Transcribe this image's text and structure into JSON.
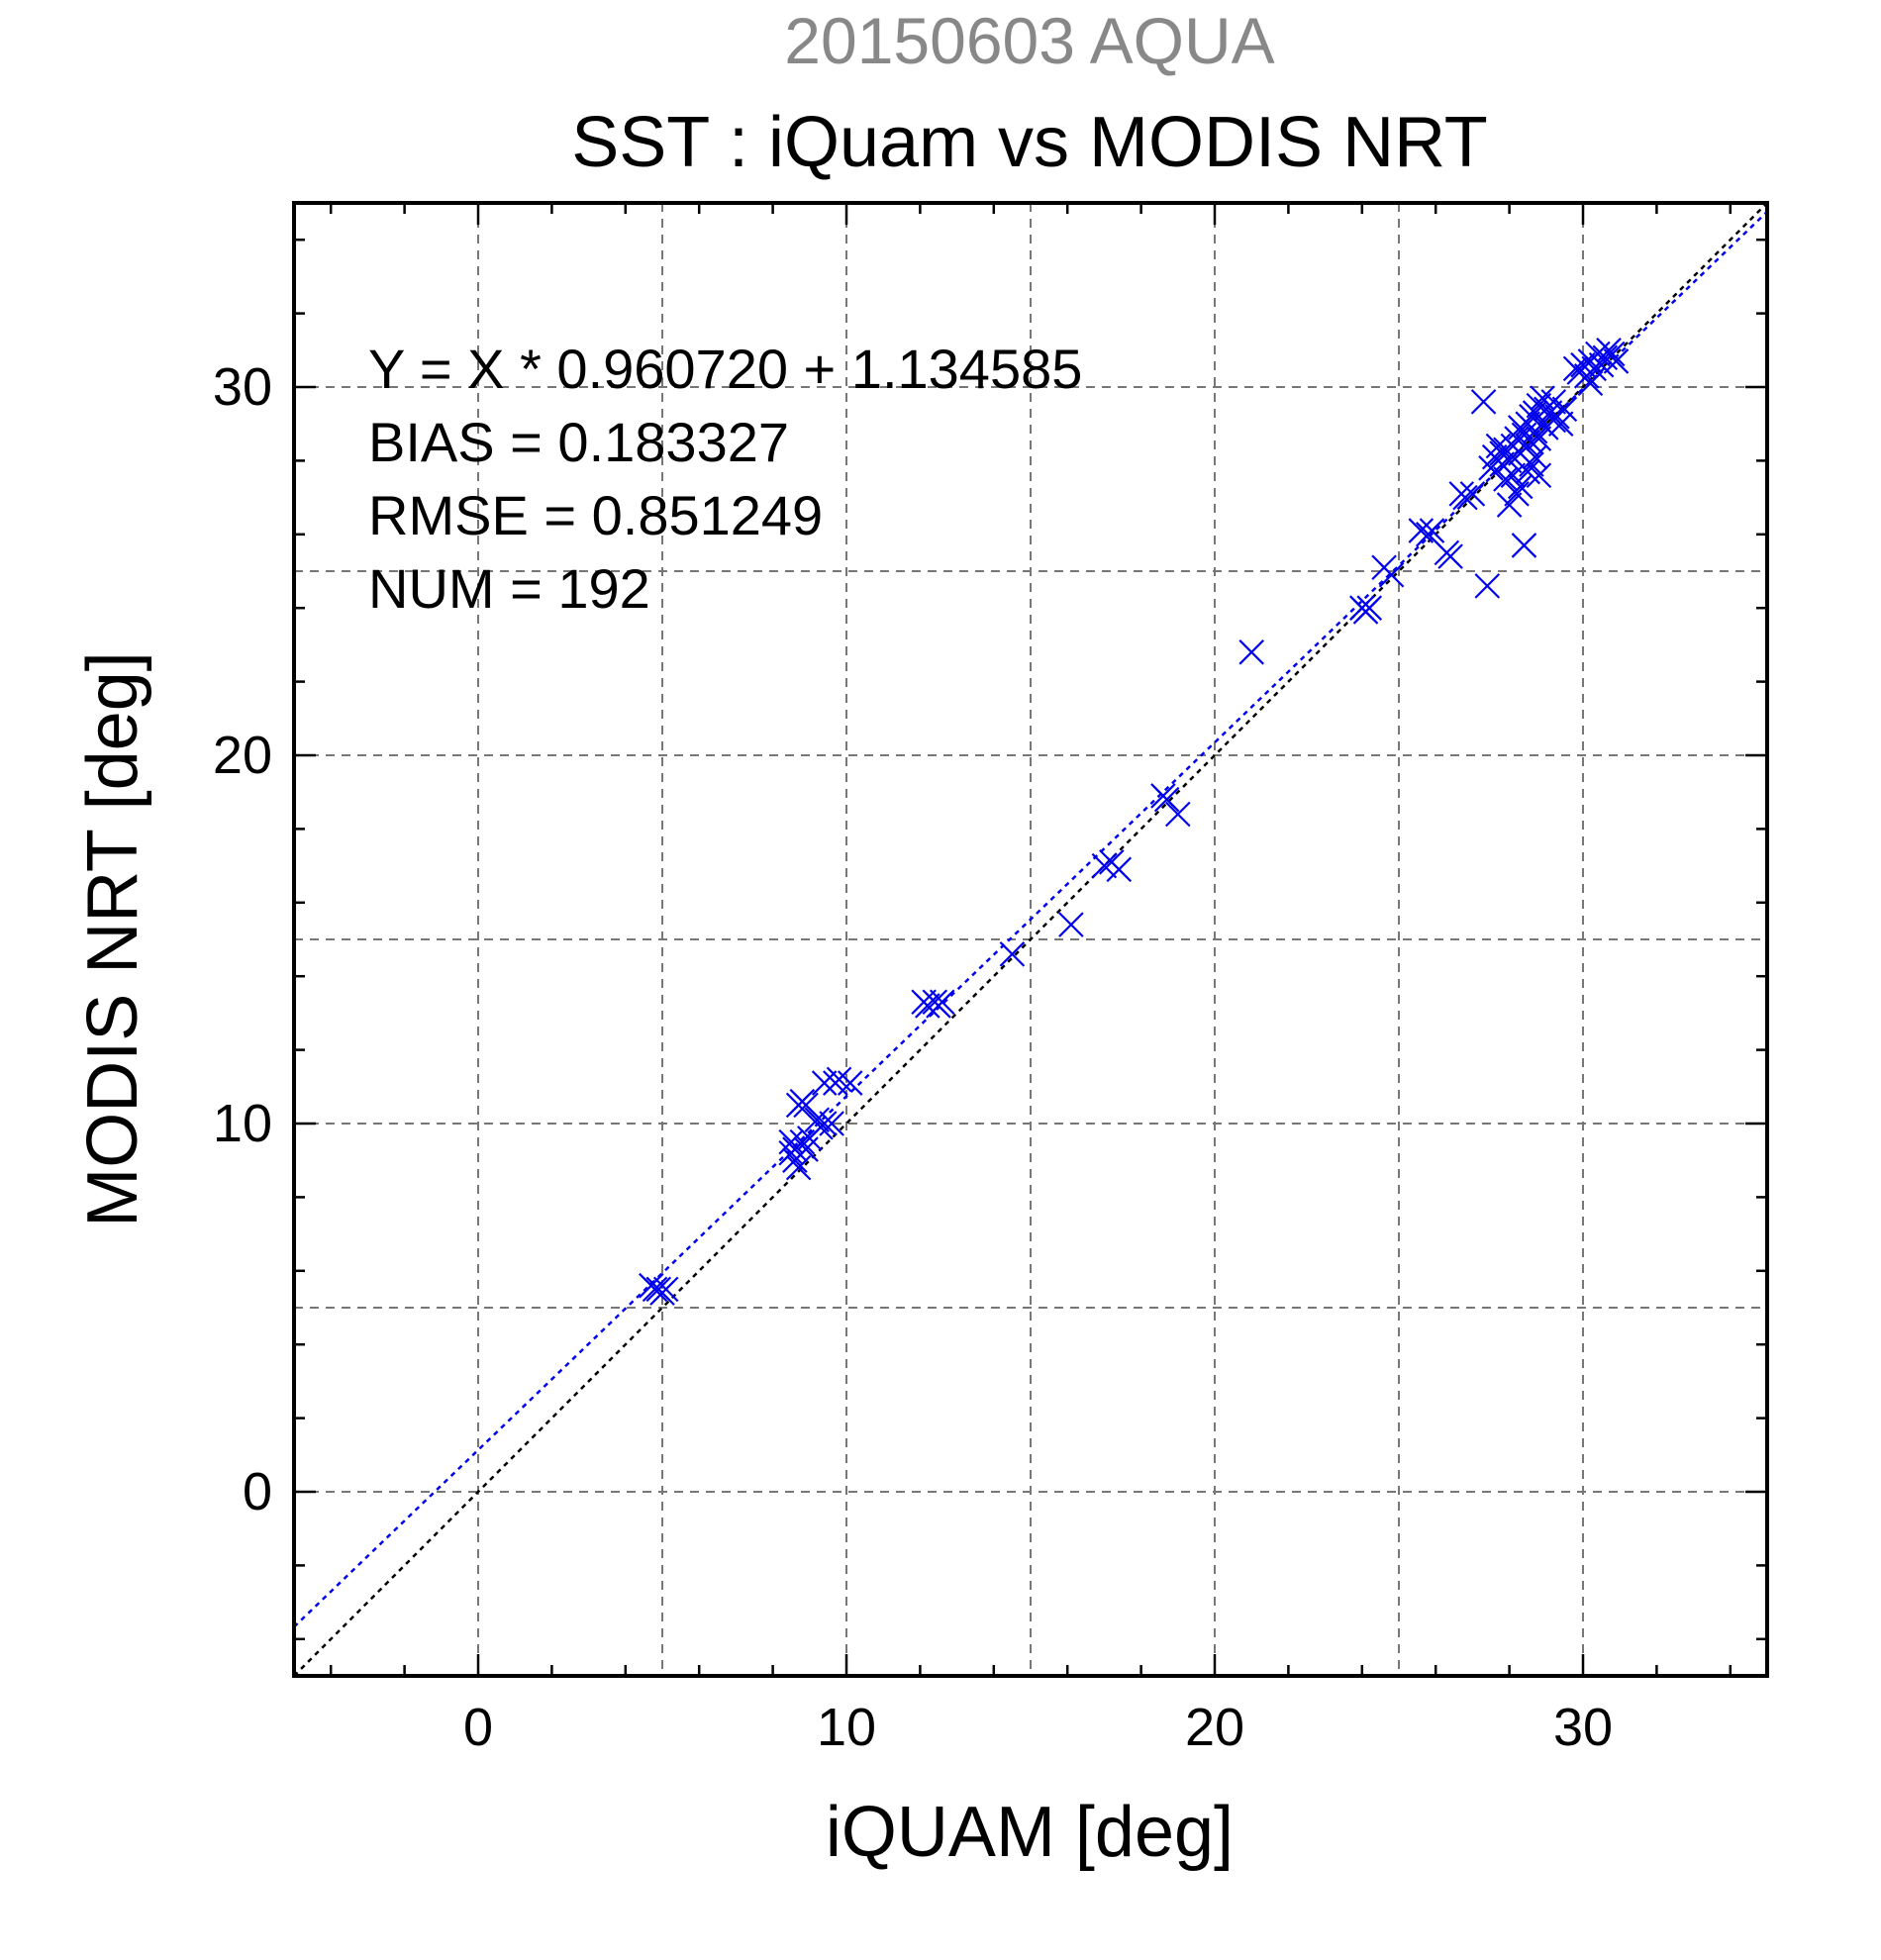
{
  "chart_data": {
    "type": "scatter",
    "title_top": "20150603 AQUA",
    "title": "SST : iQuam vs MODIS NRT",
    "xlabel": "iQUAM [deg]",
    "ylabel": "MODIS NRT [deg]",
    "xlim": [
      -5,
      35
    ],
    "ylim": [
      -5,
      35
    ],
    "xticks": [
      0,
      10,
      20,
      30
    ],
    "yticks": [
      0,
      10,
      20,
      30
    ],
    "grid": true,
    "stats": [
      "Y = X * 0.960720 + 1.134585",
      "BIAS = 0.183327",
      "RMSE = 0.851249",
      "NUM = 192"
    ],
    "fit": {
      "slope": 0.96072,
      "intercept": 1.134585,
      "color": "#0000ee"
    },
    "identity_color": "#000000",
    "marker_color": "#0000ee",
    "points": [
      [
        4.7,
        5.6
      ],
      [
        4.8,
        5.5
      ],
      [
        4.9,
        5.5
      ],
      [
        5.0,
        5.4
      ],
      [
        5.1,
        5.5
      ],
      [
        8.5,
        9.2
      ],
      [
        8.5,
        9.5
      ],
      [
        8.6,
        9.0
      ],
      [
        8.6,
        9.3
      ],
      [
        8.7,
        10.5
      ],
      [
        8.7,
        8.8
      ],
      [
        8.8,
        10.6
      ],
      [
        8.8,
        9.5
      ],
      [
        8.9,
        10.5
      ],
      [
        8.9,
        9.3
      ],
      [
        9.0,
        9.6
      ],
      [
        9.2,
        10.1
      ],
      [
        9.3,
        9.9
      ],
      [
        9.4,
        10.0
      ],
      [
        9.4,
        11.1
      ],
      [
        9.6,
        10.0
      ],
      [
        9.7,
        11.1
      ],
      [
        9.8,
        11.2
      ],
      [
        10.1,
        11.1
      ],
      [
        12.1,
        13.3
      ],
      [
        12.2,
        13.2
      ],
      [
        12.4,
        13.3
      ],
      [
        12.5,
        13.2
      ],
      [
        12.6,
        13.3
      ],
      [
        14.5,
        14.6
      ],
      [
        16.1,
        15.4
      ],
      [
        17.0,
        17.0
      ],
      [
        17.2,
        17.1
      ],
      [
        17.4,
        16.9
      ],
      [
        18.6,
        18.9
      ],
      [
        18.7,
        18.8
      ],
      [
        19.0,
        18.4
      ],
      [
        21.0,
        22.8
      ],
      [
        24.0,
        24.0
      ],
      [
        24.1,
        23.9
      ],
      [
        24.2,
        24.0
      ],
      [
        24.6,
        25.1
      ],
      [
        24.8,
        24.9
      ],
      [
        25.6,
        26.1
      ],
      [
        25.8,
        26.0
      ],
      [
        25.9,
        26.1
      ],
      [
        26.3,
        25.5
      ],
      [
        26.4,
        25.4
      ],
      [
        26.7,
        27.1
      ],
      [
        26.8,
        27.0
      ],
      [
        27.0,
        27.1
      ],
      [
        27.3,
        29.6
      ],
      [
        27.4,
        24.6
      ],
      [
        27.5,
        27.8
      ],
      [
        27.6,
        28.1
      ],
      [
        27.7,
        28.4
      ],
      [
        27.8,
        28.2
      ],
      [
        27.8,
        27.9
      ],
      [
        27.9,
        28.3
      ],
      [
        27.9,
        27.5
      ],
      [
        28.0,
        28.0
      ],
      [
        28.0,
        26.8
      ],
      [
        28.1,
        28.4
      ],
      [
        28.1,
        27.6
      ],
      [
        28.2,
        28.6
      ],
      [
        28.2,
        27.1
      ],
      [
        28.3,
        28.9
      ],
      [
        28.3,
        28.2
      ],
      [
        28.3,
        27.3
      ],
      [
        28.4,
        25.7
      ],
      [
        28.4,
        28.7
      ],
      [
        28.5,
        29.0
      ],
      [
        28.5,
        28.4
      ],
      [
        28.5,
        27.7
      ],
      [
        28.6,
        29.2
      ],
      [
        28.6,
        28.5
      ],
      [
        28.6,
        27.9
      ],
      [
        28.7,
        29.3
      ],
      [
        28.7,
        28.8
      ],
      [
        28.7,
        28.1
      ],
      [
        28.8,
        29.5
      ],
      [
        28.8,
        28.6
      ],
      [
        28.8,
        27.6
      ],
      [
        28.9,
        29.7
      ],
      [
        28.9,
        29.0
      ],
      [
        29.0,
        29.4
      ],
      [
        29.0,
        28.9
      ],
      [
        29.1,
        29.3
      ],
      [
        29.2,
        29.6
      ],
      [
        29.2,
        29.1
      ],
      [
        29.3,
        29.2
      ],
      [
        29.4,
        29.0
      ],
      [
        29.5,
        29.4
      ],
      [
        29.8,
        30.5
      ],
      [
        29.9,
        30.4
      ],
      [
        30.0,
        30.6
      ],
      [
        30.1,
        30.3
      ],
      [
        30.2,
        30.7
      ],
      [
        30.2,
        30.1
      ],
      [
        30.3,
        30.5
      ],
      [
        30.4,
        30.9
      ],
      [
        30.5,
        30.6
      ],
      [
        30.6,
        30.8
      ],
      [
        30.7,
        31.0
      ],
      [
        30.8,
        30.9
      ],
      [
        30.9,
        30.7
      ]
    ]
  }
}
